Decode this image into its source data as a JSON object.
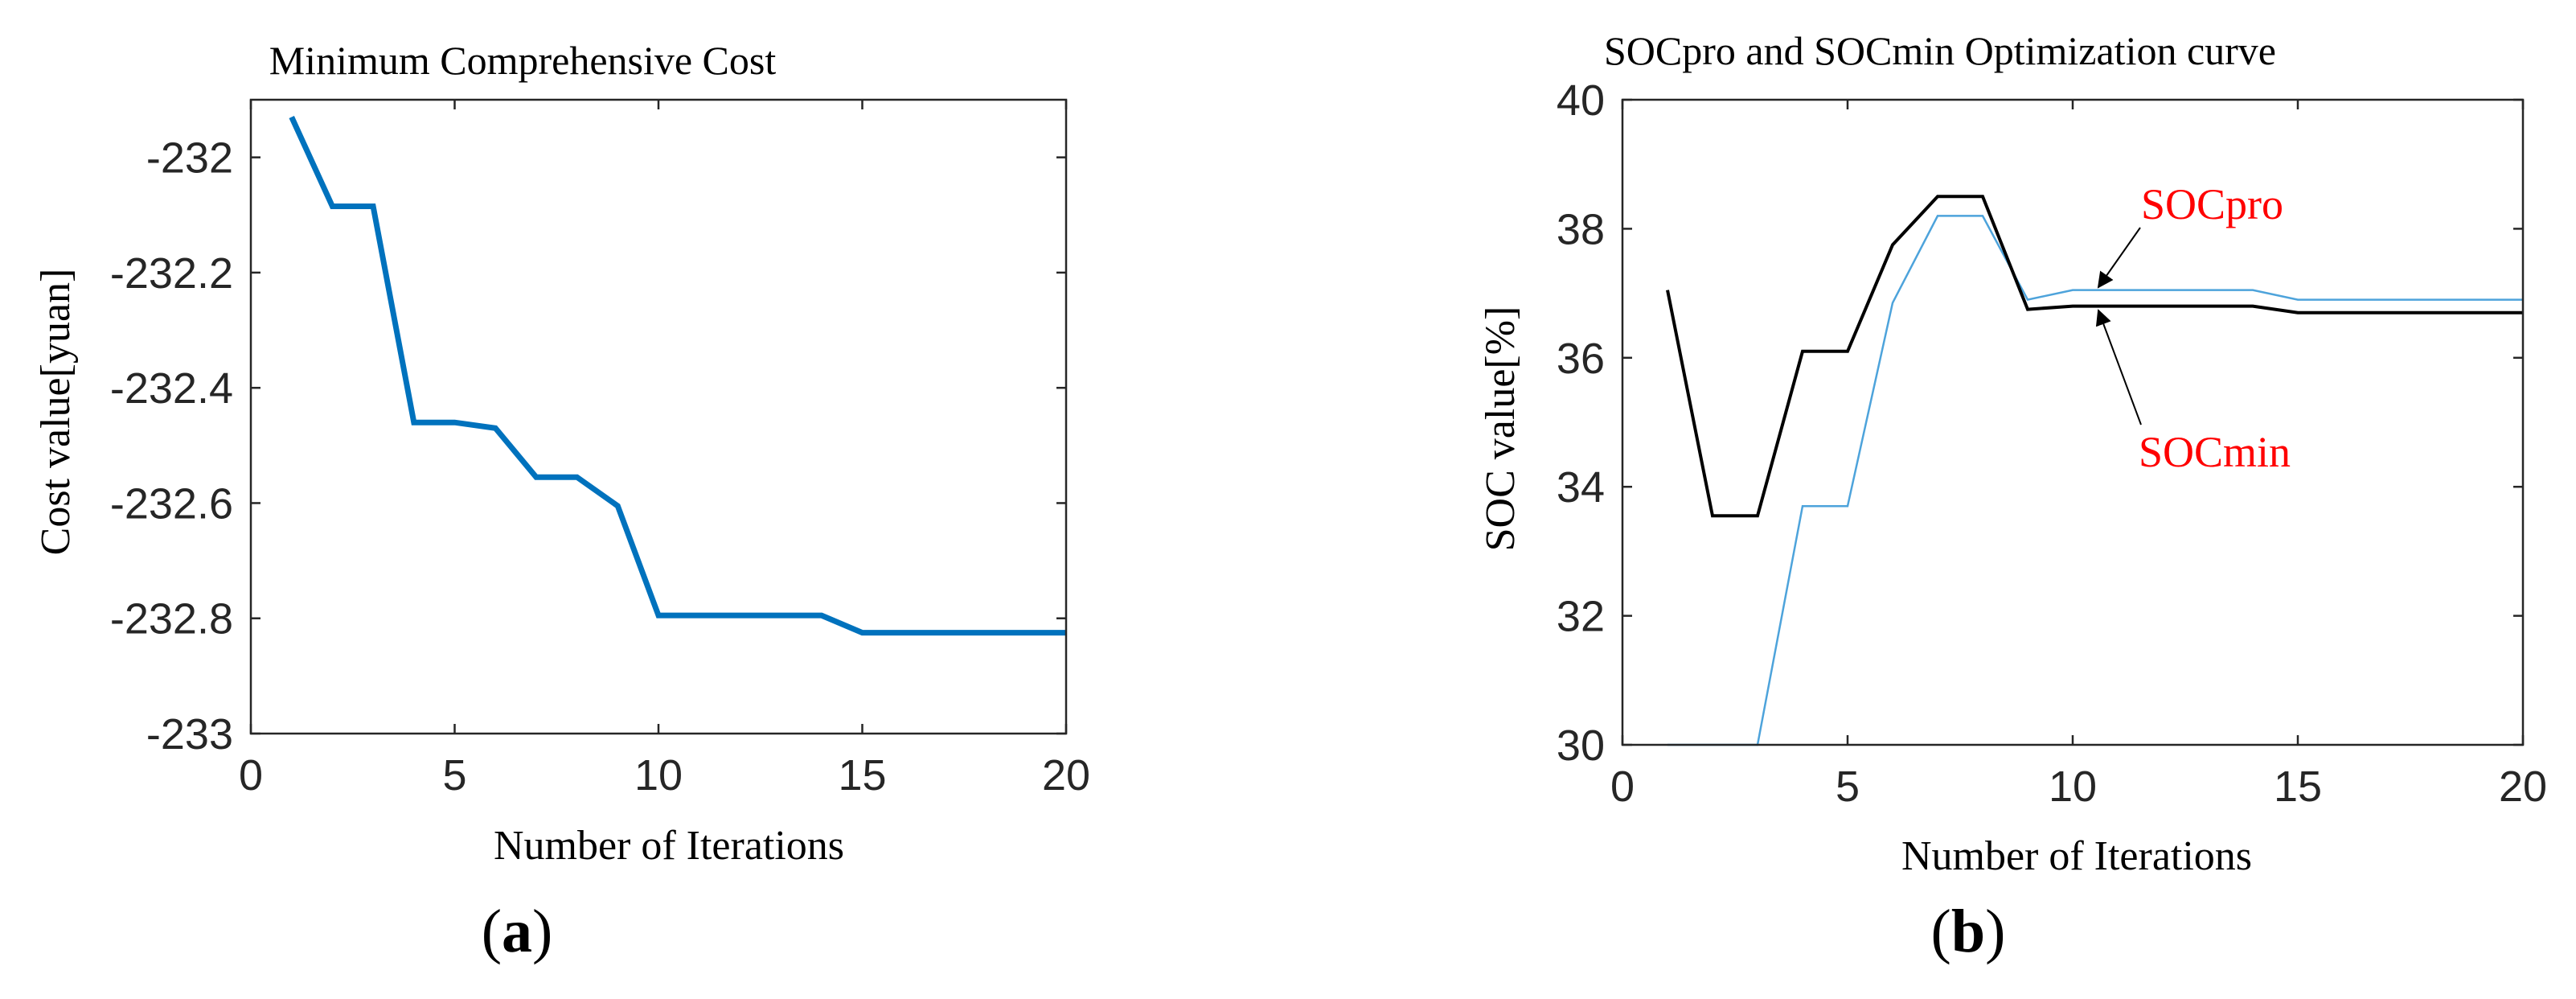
{
  "colors": {
    "cost_line": "#0072BD",
    "socpro_line": "#4DA3DB",
    "socmin_line": "#000000",
    "annotation_text": "#FF0000",
    "axes": "#262626"
  },
  "chart_data": [
    {
      "type": "line",
      "panel_label": "(a)",
      "panel_letter": "a",
      "title": "Minimum Comprehensive Cost",
      "xlabel": "Number of Iterations",
      "ylabel": "Cost value[yuan]",
      "xlim": [
        0,
        20
      ],
      "ylim": [
        -233,
        -231.9
      ],
      "xticks": [
        0,
        5,
        10,
        15,
        20
      ],
      "yticks": [
        -233,
        -232.8,
        -232.6,
        -232.4,
        -232.2,
        -232
      ],
      "xtick_labels": [
        "0",
        "5",
        "10",
        "15",
        "20"
      ],
      "ytick_labels": [
        "-233",
        "-232.8",
        "-232.6",
        "-232.4",
        "-232.2",
        "-232"
      ],
      "series": [
        {
          "name": "Cost",
          "x": [
            1,
            2,
            3,
            4,
            5,
            6,
            7,
            8,
            9,
            10,
            11,
            12,
            13,
            14,
            15,
            16,
            17,
            18,
            19,
            20
          ],
          "values": [
            -231.93,
            -232.085,
            -232.085,
            -232.46,
            -232.46,
            -232.47,
            -232.555,
            -232.555,
            -232.605,
            -232.795,
            -232.795,
            -232.795,
            -232.795,
            -232.795,
            -232.825,
            -232.825,
            -232.825,
            -232.825,
            -232.825,
            -232.825
          ]
        }
      ]
    },
    {
      "type": "line",
      "panel_label": "(b)",
      "panel_letter": "b",
      "title": "SOCpro and SOCmin Optimization curve",
      "xlabel": "Number of Iterations",
      "ylabel": "SOC value[%]",
      "xlim": [
        0,
        20
      ],
      "ylim": [
        30,
        40
      ],
      "xticks": [
        0,
        5,
        10,
        15,
        20
      ],
      "yticks": [
        30,
        32,
        34,
        36,
        38,
        40
      ],
      "xtick_labels": [
        "0",
        "5",
        "10",
        "15",
        "20"
      ],
      "ytick_labels": [
        "30",
        "32",
        "34",
        "36",
        "38",
        "40"
      ],
      "series": [
        {
          "name": "SOCpro",
          "x": [
            1,
            2,
            3,
            4,
            5,
            6,
            7,
            8,
            9,
            10,
            11,
            12,
            13,
            14,
            15,
            16,
            17,
            18,
            19,
            20
          ],
          "values": [
            30.0,
            30.0,
            30.0,
            33.7,
            33.7,
            36.85,
            38.2,
            38.2,
            36.9,
            37.05,
            37.05,
            37.05,
            37.05,
            37.05,
            36.9,
            36.9,
            36.9,
            36.9,
            36.9,
            36.9
          ]
        },
        {
          "name": "SOCmin",
          "x": [
            1,
            2,
            3,
            4,
            5,
            6,
            7,
            8,
            9,
            10,
            11,
            12,
            13,
            14,
            15,
            16,
            17,
            18,
            19,
            20
          ],
          "values": [
            37.05,
            33.55,
            33.55,
            36.1,
            36.1,
            37.75,
            38.5,
            38.5,
            36.75,
            36.8,
            36.8,
            36.8,
            36.8,
            36.8,
            36.7,
            36.7,
            36.7,
            36.7,
            36.7,
            36.7
          ]
        }
      ],
      "annotations": [
        {
          "text": "SOCpro",
          "target_series": "SOCpro",
          "target_x": 10.5,
          "target_y": 37.05
        },
        {
          "text": "SOCmin",
          "target_series": "SOCmin",
          "target_x": 10.5,
          "target_y": 36.8
        }
      ]
    }
  ]
}
